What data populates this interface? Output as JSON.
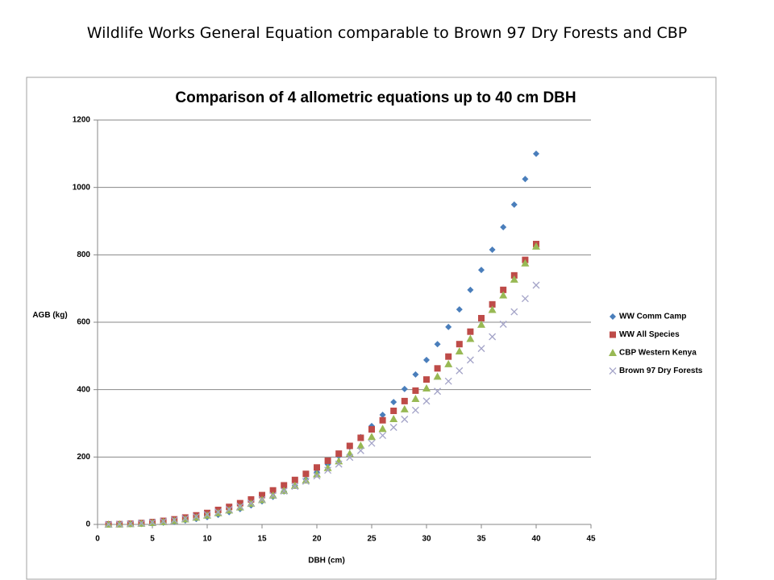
{
  "page_title": "Wildlife Works General Equation comparable to Brown 97 Dry Forests and CBP",
  "chart_data": {
    "type": "scatter",
    "title": "Comparison of 4 allometric equations up to 40 cm DBH",
    "x_label": "DBH (cm)",
    "y_label": "AGB (kg)",
    "xlim": [
      0,
      45
    ],
    "xticks": [
      0,
      5,
      10,
      15,
      20,
      25,
      30,
      35,
      40,
      45
    ],
    "ylim": [
      0,
      1200
    ],
    "yticks": [
      0,
      200,
      400,
      600,
      800,
      1000,
      1200
    ],
    "grid": true,
    "legend": "right",
    "x": [
      1,
      2,
      3,
      4,
      5,
      6,
      7,
      8,
      9,
      10,
      11,
      12,
      13,
      14,
      15,
      16,
      17,
      18,
      19,
      20,
      21,
      22,
      23,
      24,
      25,
      26,
      27,
      28,
      29,
      30,
      31,
      32,
      33,
      34,
      35,
      36,
      37,
      38,
      39,
      40
    ],
    "series": [
      {
        "name": "WW  Comm Camp",
        "color": "#4a7ebb",
        "marker": "diamond",
        "values": [
          0,
          0.2,
          0.7,
          1.6,
          3.1,
          5.1,
          7.9,
          11.6,
          16.1,
          21.7,
          28.5,
          36.5,
          45.6,
          56.4,
          68.5,
          82,
          98,
          115,
          134,
          155,
          178,
          203,
          230,
          259,
          292,
          325,
          363,
          402,
          445,
          488,
          535,
          586,
          638,
          696,
          755,
          815,
          882,
          949,
          1025,
          1100
        ]
      },
      {
        "name": "WW All Species",
        "color": "#be4b48",
        "marker": "square",
        "values": [
          0.2,
          0.8,
          2.2,
          4.2,
          7,
          10.6,
          15.1,
          20.5,
          26.9,
          34,
          43,
          52,
          63,
          74,
          87,
          101,
          116,
          132,
          150,
          169,
          189,
          210,
          233,
          257,
          282,
          309,
          337,
          366,
          397,
          430,
          463,
          498,
          535,
          572,
          612,
          653,
          696,
          739,
          785,
          832
        ]
      },
      {
        "name": "CBP Western Kenya",
        "color": "#98b954",
        "marker": "triangle",
        "values": [
          0.1,
          0.5,
          1.4,
          2.8,
          4.9,
          7.6,
          11.1,
          15.5,
          20.7,
          26.9,
          34,
          42,
          51,
          62,
          73,
          86,
          100,
          115,
          131,
          149,
          168,
          188,
          210,
          234,
          260,
          284,
          313,
          342,
          373,
          404,
          439,
          476,
          514,
          551,
          593,
          637,
          680,
          727,
          775,
          825
        ]
      },
      {
        "name": "Brown 97 Dry Forests",
        "color": "#a4a4c8",
        "marker": "x",
        "values": [
          0.2,
          0.7,
          1.9,
          3.6,
          6,
          9,
          12.9,
          17.5,
          22.9,
          29,
          36.5,
          44.5,
          53.5,
          63,
          74,
          86,
          99,
          113,
          128,
          144,
          161,
          179,
          199,
          219,
          241,
          264,
          288,
          312,
          339,
          366,
          395,
          425,
          456,
          488,
          522,
          557,
          594,
          631,
          670,
          710
        ]
      }
    ]
  }
}
